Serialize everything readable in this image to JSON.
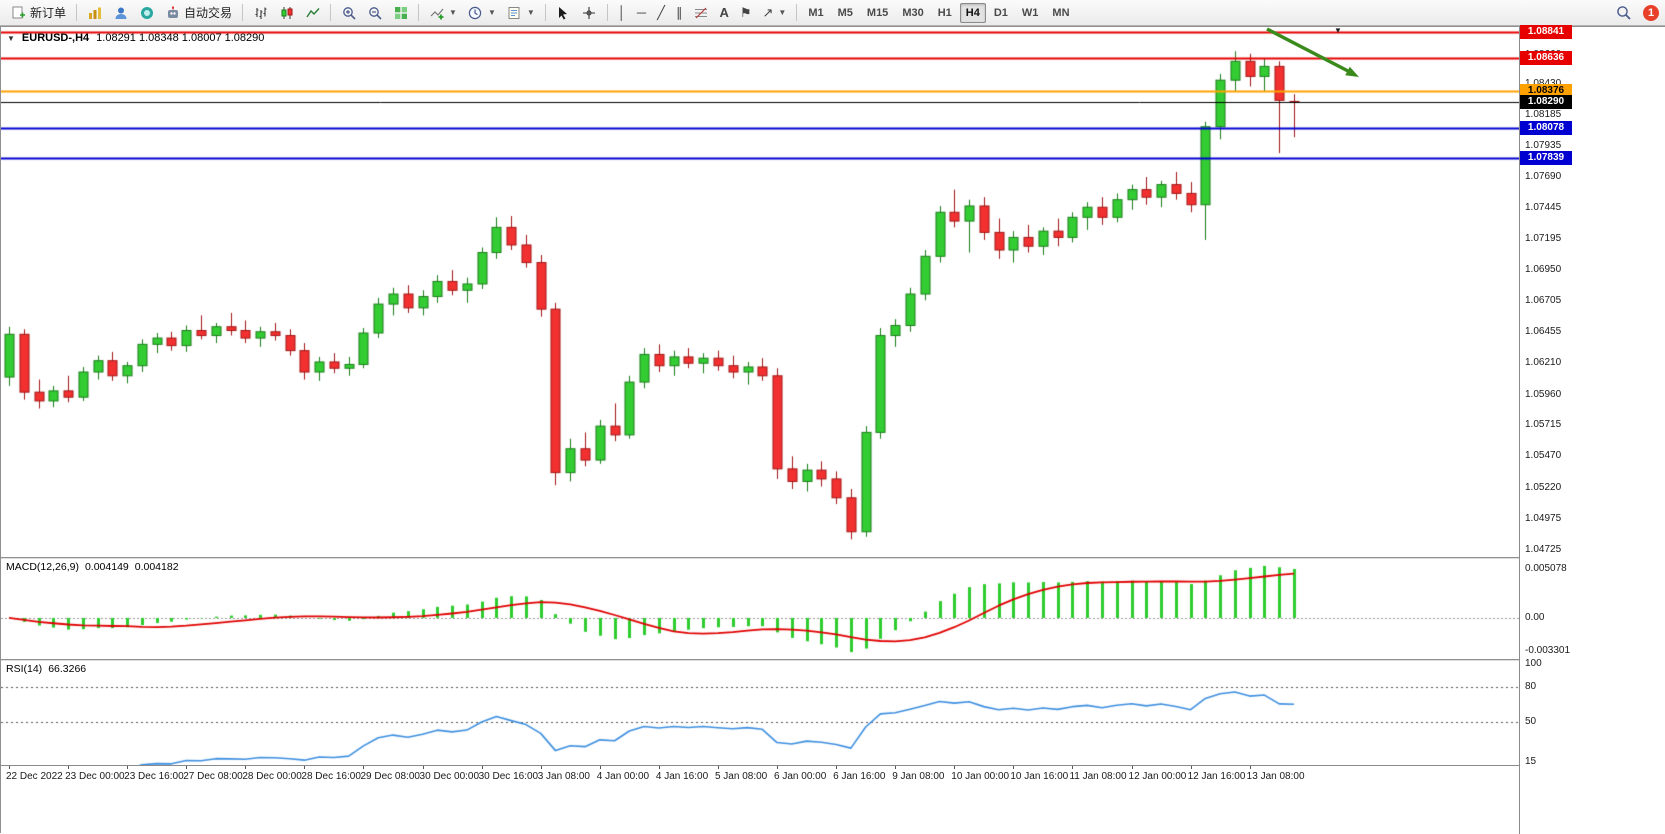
{
  "toolbar": {
    "new_order_label": "新订单",
    "auto_trading_label": "自动交易",
    "timeframes": [
      "M1",
      "M5",
      "M15",
      "M30",
      "H1",
      "H4",
      "D1",
      "W1",
      "MN"
    ],
    "active_timeframe": "H4",
    "notification_count": "1"
  },
  "chart": {
    "symbol_period": "EURUSD-,H4",
    "ohlc_text": "1.08291 1.08348 1.08007 1.08290",
    "axis_ticks": [
      "1.08660",
      "1.08430",
      "1.08185",
      "1.07935",
      "1.07690",
      "1.07445",
      "1.07195",
      "1.06950",
      "1.06705",
      "1.06455",
      "1.06210",
      "1.05960",
      "1.05715",
      "1.05470",
      "1.05220",
      "1.04975",
      "1.04725"
    ],
    "hlines": [
      {
        "price": 1.08841,
        "label": "1.08841",
        "color": "#e60000",
        "text": "#ffffff",
        "width": 2
      },
      {
        "price": 1.08636,
        "label": "1.08636",
        "color": "#e60000",
        "text": "#ffffff",
        "width": 2
      },
      {
        "price": 1.08376,
        "label": "1.08376",
        "color": "#ffa200",
        "text": "#000000",
        "width": 2
      },
      {
        "price": 1.0829,
        "label": "1.08290",
        "color": "#000000",
        "text": "#ffffff",
        "width": 1
      },
      {
        "price": 1.08078,
        "label": "1.08078",
        "color": "#0000d0",
        "text": "#ffffff",
        "width": 2
      },
      {
        "price": 1.07839,
        "label": "1.07839",
        "color": "#0000d0",
        "text": "#ffffff",
        "width": 2
      }
    ],
    "date_labels": [
      "22 Dec 2022",
      "23 Dec 00:00",
      "23 Dec 16:00",
      "27 Dec 08:00",
      "28 Dec 00:00",
      "28 Dec 16:00",
      "29 Dec 08:00",
      "30 Dec 00:00",
      "30 Dec 16:00",
      "3 Jan 08:00",
      "4 Jan 00:00",
      "4 Jan 16:00",
      "5 Jan 08:00",
      "6 Jan 00:00",
      "6 Jan 16:00",
      "9 Jan 08:00",
      "10 Jan 00:00",
      "10 Jan 16:00",
      "11 Jan 08:00",
      "12 Jan 00:00",
      "12 Jan 16:00",
      "13 Jan 08:00"
    ],
    "colors": {
      "up": "#33cc33",
      "up_border": "#1b7e1b",
      "down": "#f23030",
      "down_border": "#a31515",
      "background": "#ffffff"
    },
    "annotation": {
      "type": "arrow",
      "color": "#3a8a1c"
    }
  },
  "macd": {
    "name": "MACD(12,26,9)",
    "main_value": "0.004149",
    "signal_value": "0.004182",
    "axis_max": "0.005078",
    "axis_zero": "0.00",
    "axis_min": "-0.003301",
    "histogram_color": "#2ecc2e",
    "signal_color": "#e00000"
  },
  "rsi": {
    "name": "RSI(14)",
    "value": "66.3266",
    "axis_labels": [
      "100",
      "80",
      "50",
      "15"
    ],
    "levels": [
      80,
      50
    ],
    "line_color": "#3d8fe0"
  },
  "chart_data": {
    "type": "candlestick",
    "symbol": "EURUSD-",
    "period": "H4",
    "current_ohlc": {
      "open": 1.08291,
      "high": 1.08348,
      "low": 1.08007,
      "close": 1.0829
    },
    "candles": [
      [
        1.061,
        1.065,
        1.0603,
        1.0644
      ],
      [
        1.0644,
        1.0648,
        1.0592,
        1.0598
      ],
      [
        1.0598,
        1.0608,
        1.0585,
        1.0591
      ],
      [
        1.0591,
        1.0603,
        1.0586,
        1.0599
      ],
      [
        1.0599,
        1.0611,
        1.059,
        1.0594
      ],
      [
        1.0594,
        1.0618,
        1.0591,
        1.0614
      ],
      [
        1.0614,
        1.0627,
        1.0608,
        1.0623
      ],
      [
        1.0623,
        1.063,
        1.0607,
        1.0611
      ],
      [
        1.0611,
        1.0622,
        1.0605,
        1.0619
      ],
      [
        1.0619,
        1.064,
        1.0614,
        1.0636
      ],
      [
        1.0636,
        1.0645,
        1.0629,
        1.0641
      ],
      [
        1.0641,
        1.0646,
        1.0631,
        1.0635
      ],
      [
        1.0635,
        1.0651,
        1.063,
        1.0647
      ],
      [
        1.0647,
        1.0659,
        1.064,
        1.0643
      ],
      [
        1.0643,
        1.0653,
        1.0637,
        1.065
      ],
      [
        1.065,
        1.0661,
        1.0643,
        1.0647
      ],
      [
        1.0647,
        1.0655,
        1.0637,
        1.0641
      ],
      [
        1.0641,
        1.065,
        1.0634,
        1.0646
      ],
      [
        1.0646,
        1.0653,
        1.0639,
        1.0643
      ],
      [
        1.0643,
        1.0648,
        1.0627,
        1.0631
      ],
      [
        1.0631,
        1.0637,
        1.0608,
        1.0614
      ],
      [
        1.0614,
        1.0626,
        1.0607,
        1.0622
      ],
      [
        1.0622,
        1.0629,
        1.0613,
        1.0617
      ],
      [
        1.0617,
        1.0626,
        1.0611,
        1.062
      ],
      [
        1.062,
        1.0649,
        1.0617,
        1.0645
      ],
      [
        1.0645,
        1.0673,
        1.0641,
        1.0668
      ],
      [
        1.0668,
        1.0681,
        1.0659,
        1.0676
      ],
      [
        1.0676,
        1.0683,
        1.0661,
        1.0665
      ],
      [
        1.0665,
        1.0679,
        1.0659,
        1.0674
      ],
      [
        1.0674,
        1.0691,
        1.0669,
        1.0686
      ],
      [
        1.0686,
        1.0695,
        1.0675,
        1.0679
      ],
      [
        1.0679,
        1.0689,
        1.0669,
        1.0684
      ],
      [
        1.0684,
        1.0713,
        1.068,
        1.0709
      ],
      [
        1.0709,
        1.0737,
        1.0704,
        1.0729
      ],
      [
        1.0729,
        1.0738,
        1.0711,
        1.0715
      ],
      [
        1.0715,
        1.0723,
        1.0697,
        1.0701
      ],
      [
        1.0701,
        1.0707,
        1.0658,
        1.0664
      ],
      [
        1.0664,
        1.0669,
        1.0524,
        1.0534
      ],
      [
        1.0534,
        1.0561,
        1.0527,
        1.0553
      ],
      [
        1.0553,
        1.0566,
        1.0539,
        1.0544
      ],
      [
        1.0544,
        1.0576,
        1.0541,
        1.0571
      ],
      [
        1.0571,
        1.0589,
        1.0559,
        1.0564
      ],
      [
        1.0564,
        1.0611,
        1.0561,
        1.0606
      ],
      [
        1.0606,
        1.0633,
        1.0601,
        1.0628
      ],
      [
        1.0628,
        1.0636,
        1.0614,
        1.0619
      ],
      [
        1.0619,
        1.0631,
        1.0611,
        1.0626
      ],
      [
        1.0626,
        1.0633,
        1.0617,
        1.0621
      ],
      [
        1.0621,
        1.0629,
        1.0613,
        1.0625
      ],
      [
        1.0625,
        1.0631,
        1.0615,
        1.0619
      ],
      [
        1.0619,
        1.0627,
        1.0609,
        1.0614
      ],
      [
        1.0614,
        1.0622,
        1.0604,
        1.0618
      ],
      [
        1.0618,
        1.0625,
        1.0607,
        1.0611
      ],
      [
        1.0611,
        1.0617,
        1.0529,
        1.0537
      ],
      [
        1.0537,
        1.0547,
        1.0521,
        1.0527
      ],
      [
        1.0527,
        1.0541,
        1.0519,
        1.0536
      ],
      [
        1.0536,
        1.0543,
        1.0523,
        1.0529
      ],
      [
        1.0529,
        1.0535,
        1.0509,
        1.0514
      ],
      [
        1.0514,
        1.0521,
        1.0481,
        1.0487
      ],
      [
        1.0487,
        1.0571,
        1.0483,
        1.0566
      ],
      [
        1.0566,
        1.0649,
        1.0561,
        1.0643
      ],
      [
        1.0643,
        1.0656,
        1.0634,
        1.0651
      ],
      [
        1.0651,
        1.0681,
        1.0646,
        1.0676
      ],
      [
        1.0676,
        1.0711,
        1.0671,
        1.0706
      ],
      [
        1.0706,
        1.0746,
        1.0701,
        1.0741
      ],
      [
        1.0741,
        1.0759,
        1.0729,
        1.0734
      ],
      [
        1.0734,
        1.0751,
        1.0709,
        1.0746
      ],
      [
        1.0746,
        1.0753,
        1.0719,
        1.0725
      ],
      [
        1.0725,
        1.0736,
        1.0704,
        1.0711
      ],
      [
        1.0711,
        1.0726,
        1.0701,
        1.0721
      ],
      [
        1.0721,
        1.0731,
        1.0709,
        1.0714
      ],
      [
        1.0714,
        1.0729,
        1.0707,
        1.0726
      ],
      [
        1.0726,
        1.0736,
        1.0714,
        1.0721
      ],
      [
        1.0721,
        1.0741,
        1.0717,
        1.0737
      ],
      [
        1.0737,
        1.0749,
        1.0727,
        1.0745
      ],
      [
        1.0745,
        1.0753,
        1.0731,
        1.0737
      ],
      [
        1.0737,
        1.0756,
        1.0733,
        1.0751
      ],
      [
        1.0751,
        1.0763,
        1.0743,
        1.0759
      ],
      [
        1.0759,
        1.0769,
        1.0747,
        1.0753
      ],
      [
        1.0753,
        1.0766,
        1.0745,
        1.0763
      ],
      [
        1.0763,
        1.0773,
        1.0751,
        1.0756
      ],
      [
        1.0756,
        1.0765,
        1.0741,
        1.0747
      ],
      [
        1.0747,
        1.0813,
        1.0719,
        1.0809
      ],
      [
        1.0809,
        1.0851,
        1.0799,
        1.0846
      ],
      [
        1.0846,
        1.0869,
        1.0837,
        1.0861
      ],
      [
        1.0861,
        1.0867,
        1.0841,
        1.0849
      ],
      [
        1.0849,
        1.0863,
        1.0837,
        1.0857
      ],
      [
        1.0857,
        1.0861,
        1.0788,
        1.083
      ],
      [
        1.08291,
        1.08348,
        1.08007,
        1.0829
      ]
    ]
  }
}
